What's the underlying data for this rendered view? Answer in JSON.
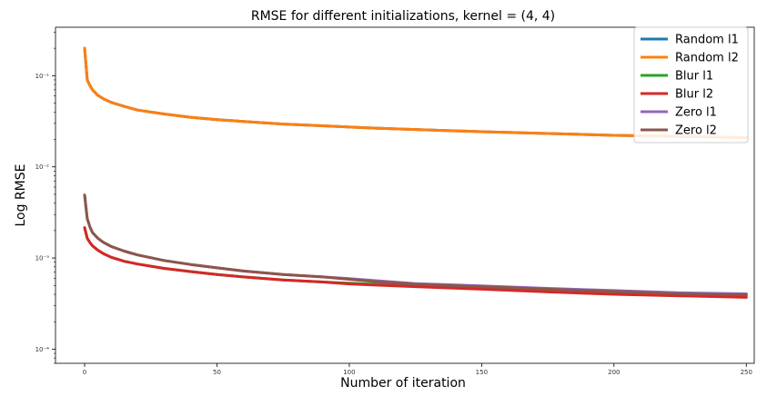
{
  "chart_data": {
    "type": "line",
    "title": "RMSE for different initializations, kernel = (4, 4)",
    "xlabel": "Number of iteration",
    "ylabel": "Log RMSE",
    "xlim": [
      -11,
      253
    ],
    "ylim": [
      7e-05,
      0.34
    ],
    "yscale": "log",
    "x_ticks": [
      0,
      50,
      100,
      150,
      200,
      250
    ],
    "x_tick_labels": [
      "0",
      "50",
      "100",
      "150",
      "200",
      "250"
    ],
    "y_ticks": [
      0.0001,
      0.001,
      0.01,
      0.1
    ],
    "y_tick_labels": [
      "10⁻⁴",
      "10⁻³",
      "10⁻²",
      "10⁻¹"
    ],
    "grid": false,
    "legend_position": "top-right",
    "x": [
      0,
      1,
      2,
      3,
      5,
      7,
      10,
      15,
      20,
      30,
      40,
      50,
      60,
      75,
      90,
      100,
      110,
      125,
      150,
      175,
      200,
      225,
      250
    ],
    "series": [
      {
        "name": "Random l1",
        "color": "#1f77b4",
        "values": [
          0.2,
          0.09,
          0.078,
          0.07,
          0.061,
          0.056,
          0.051,
          0.046,
          0.042,
          0.038,
          0.035,
          0.033,
          0.0315,
          0.0295,
          0.0282,
          0.0273,
          0.0266,
          0.0257,
          0.0243,
          0.0232,
          0.0222,
          0.0216,
          0.0209
        ]
      },
      {
        "name": "Random l2",
        "color": "#ff7f0e",
        "values": [
          0.2,
          0.09,
          0.078,
          0.07,
          0.061,
          0.056,
          0.051,
          0.046,
          0.042,
          0.038,
          0.035,
          0.033,
          0.0315,
          0.0295,
          0.0282,
          0.0273,
          0.0266,
          0.0257,
          0.0243,
          0.0232,
          0.0222,
          0.0216,
          0.0209
        ]
      },
      {
        "name": "Blur l1",
        "color": "#2ca02c",
        "values": [
          0.00215,
          0.00165,
          0.00148,
          0.00136,
          0.00122,
          0.00112,
          0.00102,
          0.00092,
          0.00086,
          0.00077,
          0.00071,
          0.00066,
          0.00062,
          0.000575,
          0.000545,
          0.00053,
          0.000515,
          0.000495,
          0.000465,
          0.00044,
          0.00042,
          0.000405,
          0.00039
        ]
      },
      {
        "name": "Blur l2",
        "color": "#d62728",
        "values": [
          0.00215,
          0.00165,
          0.00148,
          0.00136,
          0.00122,
          0.00112,
          0.00102,
          0.00092,
          0.00086,
          0.00077,
          0.00071,
          0.00066,
          0.00062,
          0.000575,
          0.000545,
          0.00052,
          0.000505,
          0.000485,
          0.000455,
          0.000425,
          0.0004,
          0.000385,
          0.00037
        ]
      },
      {
        "name": "Zero l1",
        "color": "#9467bd",
        "values": [
          0.0049,
          0.0027,
          0.0022,
          0.0019,
          0.00165,
          0.00149,
          0.00134,
          0.00119,
          0.00108,
          0.00094,
          0.00085,
          0.00078,
          0.00072,
          0.00066,
          0.00062,
          0.000595,
          0.000565,
          0.000525,
          0.000495,
          0.000465,
          0.00044,
          0.000415,
          0.000405
        ]
      },
      {
        "name": "Zero l2",
        "color": "#8c564b",
        "values": [
          0.0049,
          0.0027,
          0.0022,
          0.0019,
          0.00165,
          0.00149,
          0.00134,
          0.00119,
          0.00108,
          0.00094,
          0.00085,
          0.00078,
          0.00072,
          0.00066,
          0.00062,
          0.000585,
          0.00055,
          0.000515,
          0.000485,
          0.000455,
          0.00043,
          0.000405,
          0.000395
        ]
      }
    ]
  }
}
